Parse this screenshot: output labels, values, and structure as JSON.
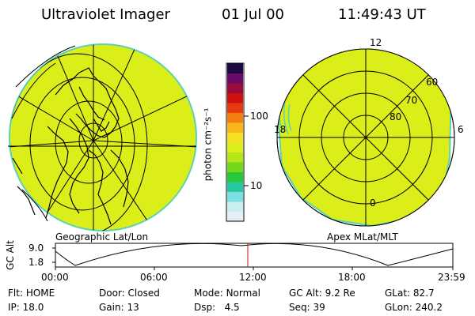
{
  "header": {
    "instrument": "Ultraviolet Imager",
    "date": "01 Jul 00",
    "time": "11:49:43 UT"
  },
  "left_map": {
    "label": "Geographic Lat/Lon",
    "fill_color": "#dcee1a"
  },
  "right_map": {
    "label": "Apex MLat/MLT",
    "mlt_labels": {
      "top": "12",
      "left": "18",
      "right": "6",
      "bottom": "0"
    },
    "lat_labels": [
      "60",
      "70",
      "80"
    ],
    "fill_color": "#dcee1a"
  },
  "colorbar": {
    "unit_label": "photon cm⁻²s⁻¹",
    "ticks": [
      "100",
      "10"
    ],
    "colors": [
      "#1a0a40",
      "#6a0a6a",
      "#9a0a3a",
      "#cc1010",
      "#e83a10",
      "#f47e10",
      "#f8b818",
      "#f4e020",
      "#dcee1a",
      "#b4e61a",
      "#76d81a",
      "#28c83a",
      "#28c8a0",
      "#7ae0e0",
      "#c8eef0",
      "#e4f0f4"
    ]
  },
  "altitude_plot": {
    "ylabel": "GC Alt",
    "yticks": [
      "9.0",
      "1.8"
    ],
    "xticks": [
      "00:00",
      "06:00",
      "12:00",
      "18:00",
      "23:59"
    ]
  },
  "info": {
    "row1": [
      {
        "label": "Flt:",
        "value": "HOME"
      },
      {
        "label": "Door:",
        "value": "Closed"
      },
      {
        "label": "Mode:",
        "value": "Normal"
      },
      {
        "label": "GC Alt:",
        "value": "9.2 Re"
      },
      {
        "label": "GLat:",
        "value": "82.7"
      }
    ],
    "row2": [
      {
        "label": "IP:",
        "value": "18.0"
      },
      {
        "label": "Gain:",
        "value": "13"
      },
      {
        "label": "Dsp:",
        "value": "4.5"
      },
      {
        "label": "Seq:",
        "value": "39"
      },
      {
        "label": "GLon:",
        "value": "240.2"
      }
    ]
  }
}
